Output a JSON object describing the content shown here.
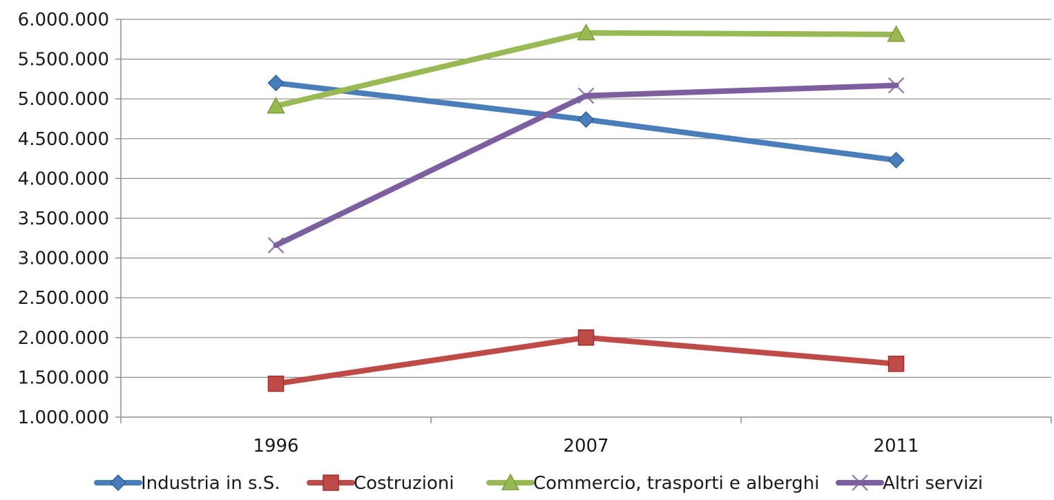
{
  "chart_data": {
    "type": "line",
    "title": "",
    "xlabel": "",
    "ylabel": "",
    "categories": [
      "1996",
      "2007",
      "2011"
    ],
    "ylim": [
      1000000,
      6000000
    ],
    "y_ticks": [
      1000000,
      1500000,
      2000000,
      2500000,
      3000000,
      3500000,
      4000000,
      4500000,
      5000000,
      5500000,
      6000000
    ],
    "y_tick_labels": [
      "1.000.000",
      "1.500.000",
      "2.000.000",
      "2.500.000",
      "3.000.000",
      "3.500.000",
      "4.000.000",
      "4.500.000",
      "5.000.000",
      "5.500.000",
      "6.000.000"
    ],
    "grid": true,
    "legend_position": "bottom",
    "series": [
      {
        "name": "Industria in s.S.",
        "values": [
          5200000,
          4740000,
          4230000
        ],
        "color": "#4a7ebb",
        "marker": "diamond"
      },
      {
        "name": "Costruzioni",
        "values": [
          1420000,
          2000000,
          1670000
        ],
        "color": "#be4b48",
        "marker": "square"
      },
      {
        "name": "Commercio, trasporti e alberghi",
        "values": [
          4910000,
          5830000,
          5810000
        ],
        "color": "#98b954",
        "marker": "triangle"
      },
      {
        "name": "Altri servizi",
        "values": [
          3160000,
          5040000,
          5170000
        ],
        "color": "#7d5fa0",
        "marker": "x"
      }
    ]
  }
}
